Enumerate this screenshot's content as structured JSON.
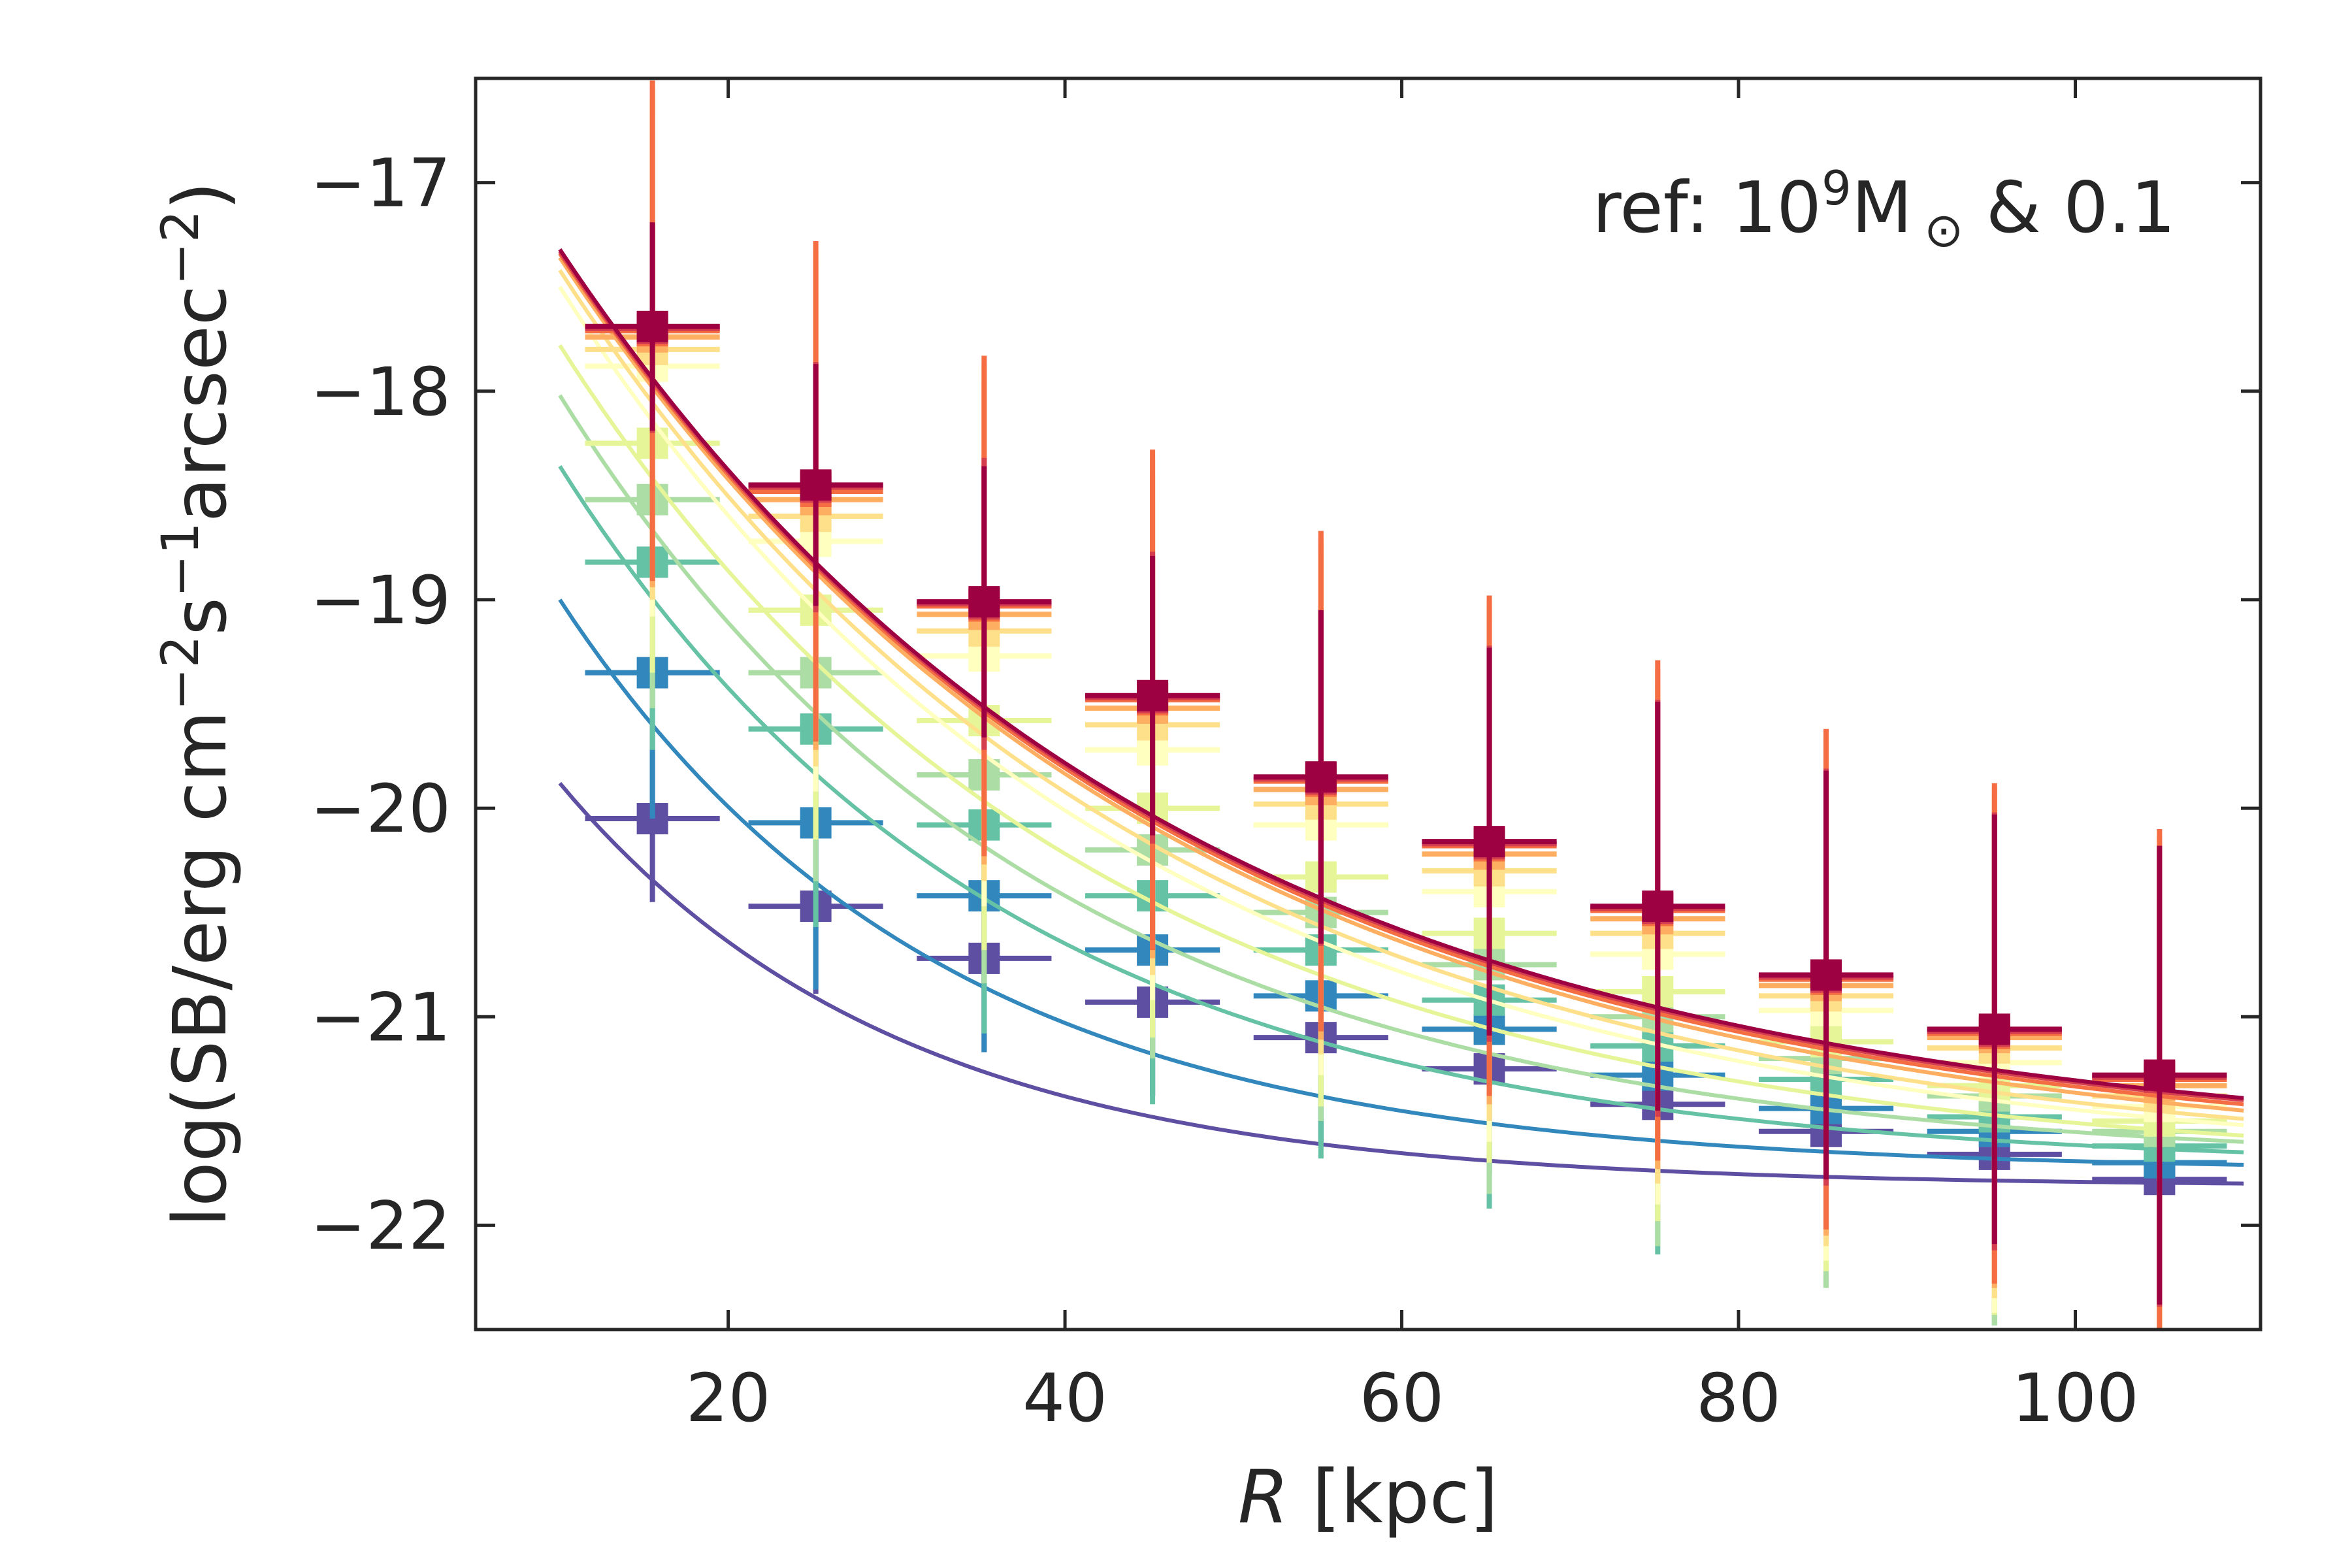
{
  "chart_data": {
    "type": "line",
    "title": "",
    "xlabel_italic": "R",
    "xlabel_rest": " [kpc]",
    "ylabel_main": "log(SB/erg cm",
    "ylabel_exp1": "−2",
    "ylabel_mid": "s",
    "ylabel_exp2": "−1",
    "ylabel_tail": "arcsec",
    "ylabel_exp3": "−2",
    "ylabel_close": ")",
    "annotation_pre": "ref: 10",
    "annotation_sup": "9",
    "annotation_m": "M",
    "annotation_sub": "⊙",
    "annotation_post": " & 0.1",
    "xlim": [
      5,
      111
    ],
    "ylim": [
      -22.5,
      -16.5
    ],
    "xticks": [
      20,
      40,
      60,
      80,
      100
    ],
    "xtick_labels": [
      "20",
      "40",
      "60",
      "80",
      "100"
    ],
    "yticks": [
      -17,
      -18,
      -19,
      -20,
      -21,
      -22
    ],
    "ytick_labels": [
      "−17",
      "−18",
      "−19",
      "−20",
      "−21",
      "−22"
    ],
    "curve_x_range": [
      10,
      110
    ],
    "bin_half_width": 4,
    "bin_centers": [
      15.5,
      25.2,
      35.2,
      45.2,
      55.2,
      65.2,
      75.2,
      85.2,
      95.2,
      105
    ],
    "series": [
      {
        "name": "s1",
        "color": "#5e4fa2",
        "curve_start": -19.88,
        "curve_end": -21.8,
        "curve_k": 0.05,
        "values": [
          -20.05,
          -20.47,
          -20.72,
          -20.93,
          -21.1,
          -21.25,
          -21.42,
          -21.55,
          -21.66,
          -21.78
        ],
        "yerr": [
          0.4,
          0.42,
          0.45,
          0.45,
          0.5,
          0.5,
          0.5,
          0.5,
          0.5,
          0.55
        ]
      },
      {
        "name": "s2",
        "color": "#3288bd",
        "curve_start": -19.0,
        "curve_end": -21.71,
        "curve_k": 0.045,
        "values": [
          -19.35,
          -20.07,
          -20.42,
          -20.68,
          -20.9,
          -21.06,
          -21.28,
          -21.44,
          -21.55,
          -21.7
        ],
        "yerr": [
          0.7,
          0.8,
          0.75,
          0.7,
          0.7,
          0.7,
          0.6,
          0.6,
          0.6,
          0.6
        ]
      },
      {
        "name": "s3",
        "color": "#66c2a5",
        "curve_start": -18.36,
        "curve_end": -21.65,
        "curve_k": 0.038,
        "values": [
          -18.82,
          -19.62,
          -20.08,
          -20.42,
          -20.68,
          -20.92,
          -21.14,
          -21.3,
          -21.48,
          -21.62
        ],
        "yerr": [
          0.9,
          0.95,
          1.0,
          1.0,
          1.0,
          1.0,
          1.0,
          1.0,
          1.0,
          1.0
        ]
      },
      {
        "name": "s4",
        "color": "#abdda4",
        "curve_start": -18.02,
        "curve_end": -21.6,
        "curve_k": 0.035,
        "values": [
          -18.52,
          -19.35,
          -19.84,
          -20.2,
          -20.5,
          -20.75,
          -21.0,
          -21.2,
          -21.38,
          -21.55
        ],
        "yerr": [
          1.0,
          1.0,
          1.0,
          1.0,
          1.0,
          1.1,
          1.1,
          1.1,
          1.1,
          1.1
        ]
      },
      {
        "name": "s5",
        "color": "#e6f598",
        "curve_start": -17.78,
        "curve_end": -21.57,
        "curve_k": 0.032,
        "values": [
          -18.25,
          -19.05,
          -19.58,
          -20.0,
          -20.33,
          -20.6,
          -20.88,
          -21.12,
          -21.33,
          -21.5
        ],
        "yerr": [
          1.1,
          1.1,
          1.1,
          1.1,
          1.1,
          1.1,
          1.1,
          1.1,
          1.1,
          1.1
        ]
      },
      {
        "name": "s6",
        "color": "#ffffbf",
        "curve_start": -17.5,
        "curve_end": -21.52,
        "curve_k": 0.03,
        "values": [
          -17.88,
          -18.72,
          -19.27,
          -19.72,
          -20.08,
          -20.4,
          -20.7,
          -20.97,
          -21.22,
          -21.43
        ],
        "yerr": [
          1.2,
          1.2,
          1.2,
          1.2,
          1.2,
          1.2,
          1.2,
          1.2,
          1.2,
          1.2
        ]
      },
      {
        "name": "s7",
        "color": "#fee08b",
        "curve_start": -17.42,
        "curve_end": -21.49,
        "curve_k": 0.029,
        "values": [
          -17.8,
          -18.6,
          -19.15,
          -19.6,
          -19.98,
          -20.3,
          -20.6,
          -20.9,
          -21.15,
          -21.38
        ],
        "yerr": [
          1.2,
          1.2,
          1.2,
          1.2,
          1.2,
          1.2,
          1.2,
          1.2,
          1.2,
          1.2
        ]
      },
      {
        "name": "s8",
        "color": "#fdae61",
        "curve_start": -17.36,
        "curve_end": -21.45,
        "curve_k": 0.028,
        "values": [
          -17.74,
          -18.52,
          -19.07,
          -19.52,
          -19.91,
          -20.22,
          -20.53,
          -20.85,
          -21.1,
          -21.33
        ],
        "yerr": [
          1.2,
          1.2,
          1.2,
          1.2,
          1.2,
          1.2,
          1.2,
          1.2,
          1.2,
          1.2
        ]
      },
      {
        "name": "s9",
        "color": "#f46d43",
        "curve_start": -17.34,
        "curve_end": -21.42,
        "curve_k": 0.028,
        "values": [
          -17.71,
          -18.48,
          -19.03,
          -19.48,
          -19.87,
          -20.18,
          -20.49,
          -20.82,
          -21.08,
          -21.3
        ],
        "yerr": [
          1.2,
          1.2,
          1.2,
          1.2,
          1.2,
          1.2,
          1.2,
          1.2,
          1.2,
          1.2
        ]
      },
      {
        "name": "s10",
        "color": "#d53e4f",
        "curve_start": -17.33,
        "curve_end": -21.4,
        "curve_k": 0.028,
        "values": [
          -17.7,
          -18.46,
          -19.02,
          -19.47,
          -19.86,
          -20.17,
          -20.48,
          -20.81,
          -21.07,
          -21.29
        ],
        "yerr": [
          0.5,
          0.6,
          0.7,
          0.7,
          0.8,
          0.95,
          1.0,
          1.0,
          1.05,
          1.1
        ]
      },
      {
        "name": "s11",
        "color": "#9e0142",
        "curve_start": -17.32,
        "curve_end": -21.39,
        "curve_k": 0.028,
        "values": [
          -17.69,
          -18.45,
          -19.01,
          -19.46,
          -19.85,
          -20.16,
          -20.47,
          -20.8,
          -21.06,
          -21.28
        ],
        "yerr": [
          0.5,
          0.58,
          0.65,
          0.67,
          0.8,
          0.93,
          0.98,
          0.98,
          1.03,
          1.1
        ]
      }
    ]
  }
}
